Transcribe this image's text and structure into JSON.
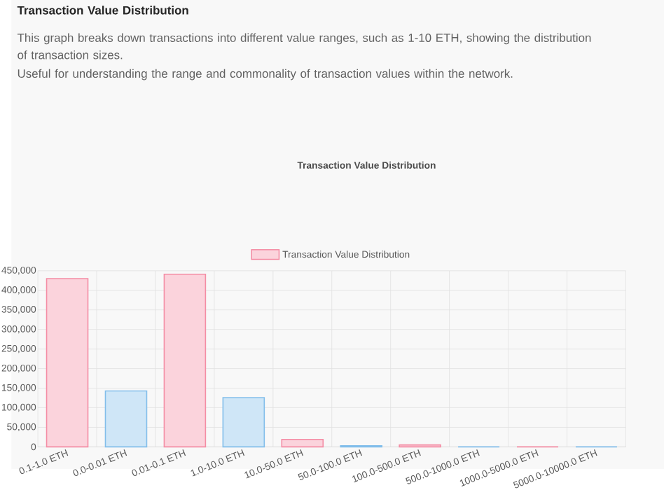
{
  "chart_data": {
    "type": "bar",
    "title": "Transaction Value Distribution",
    "annotations": [
      "**Transaction Value Distribution**",
      "This graph breaks down transactions into different value ranges, such as 1-10 ETH, showing the distribution of transaction sizes.",
      "Useful for understanding the range and commonality of transaction values within the network."
    ],
    "categories": [
      "0.1-1.0 ETH",
      "0.0-0.01 ETH",
      "0.01-0.1 ETH",
      "1.0-10.0 ETH",
      "10.0-50.0 ETH",
      "50.0-100.0 ETH",
      "100.0-500.0 ETH",
      "500.0-1000.0 ETH",
      "1000.0-5000.0 ETH",
      "5000.0-10000.0 ETH"
    ],
    "series": [
      {
        "name": "Transaction Value Distribution",
        "color": "#fbd3dc",
        "values": [
          430000,
          143000,
          441000,
          126000,
          19000,
          3000,
          5000,
          0,
          0,
          0
        ],
        "colors": [
          "#fbd3dc",
          "#cfe6f7",
          "#fbd3dc",
          "#cfe6f7",
          "#fbd3dc",
          "#cfe6f7",
          "#fbd3dc",
          "#cfe6f7",
          "#fbd3dc",
          "#cfe6f7"
        ]
      }
    ],
    "ylim": [
      0,
      450000
    ],
    "yticks": [
      {
        "value": 0,
        "label": "0"
      },
      {
        "value": 50000,
        "label": "50,000"
      },
      {
        "value": 100000,
        "label": "100,000"
      },
      {
        "value": 150000,
        "label": "150,000"
      },
      {
        "value": 200000,
        "label": "200,000"
      },
      {
        "value": 250000,
        "label": "250,000"
      },
      {
        "value": 300000,
        "label": "300,000"
      },
      {
        "value": 350000,
        "label": "350,000"
      },
      {
        "value": 400000,
        "label": "400,000"
      },
      {
        "value": 450000,
        "label": "450,000"
      }
    ],
    "grid": true,
    "legend": "top"
  }
}
